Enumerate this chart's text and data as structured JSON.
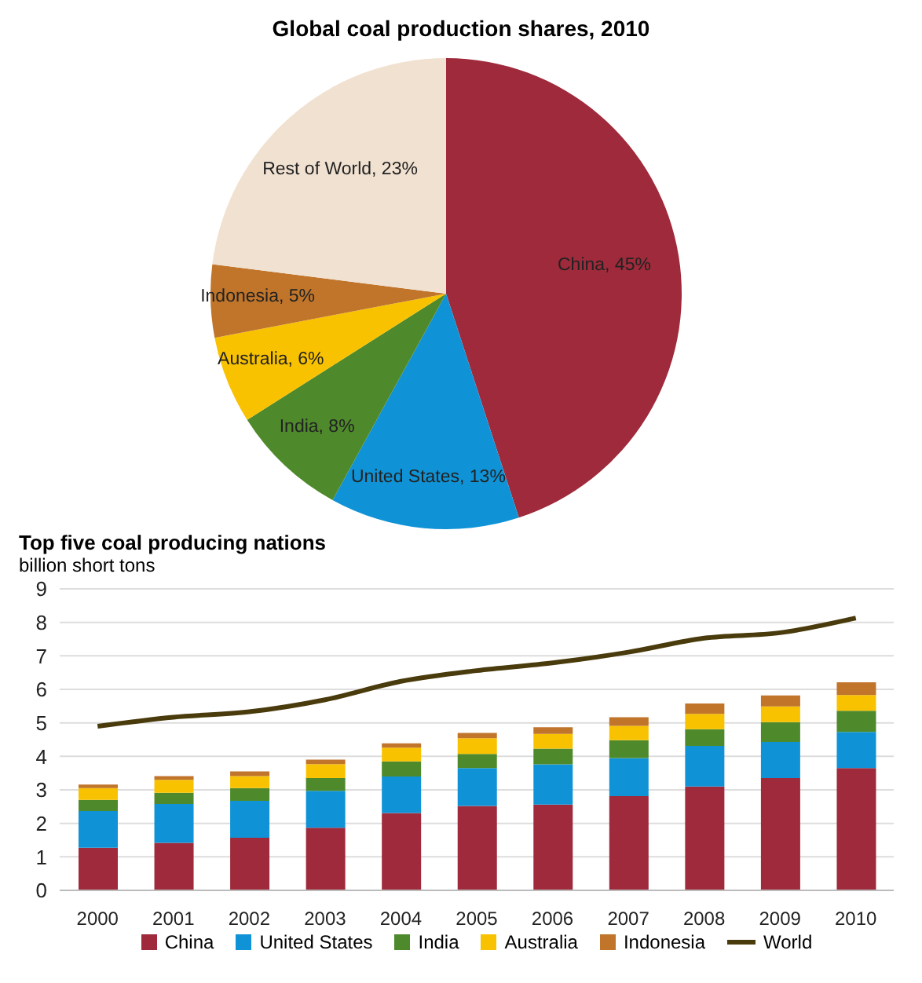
{
  "chart_data": [
    {
      "type": "pie",
      "title": "Global coal production shares, 2010",
      "categories": [
        "China",
        "United States",
        "India",
        "Australia",
        "Indonesia",
        "Rest of World"
      ],
      "values": [
        45,
        13,
        8,
        6,
        5,
        23
      ],
      "value_labels": [
        "45%",
        "13%",
        "8%",
        "6%",
        "5%",
        "23%"
      ],
      "colors": [
        "#9e2a3b",
        "#0f93d6",
        "#4e8a2b",
        "#f9c200",
        "#c0752a",
        "#f1e1d1"
      ]
    },
    {
      "type": "bar",
      "stacked": true,
      "title": "Top five coal producing nations",
      "ylabel": "billion short tons",
      "categories": [
        "2000",
        "2001",
        "2002",
        "2003",
        "2004",
        "2005",
        "2006",
        "2007",
        "2008",
        "2009",
        "2010"
      ],
      "series": [
        {
          "name": "China",
          "color": "#9e2a3b",
          "values": [
            1.27,
            1.42,
            1.57,
            1.87,
            2.31,
            2.52,
            2.56,
            2.81,
            3.1,
            3.35,
            3.65
          ]
        },
        {
          "name": "United States",
          "color": "#0f93d6",
          "values": [
            1.1,
            1.16,
            1.1,
            1.1,
            1.09,
            1.13,
            1.2,
            1.14,
            1.21,
            1.08,
            1.08
          ]
        },
        {
          "name": "India",
          "color": "#4e8a2b",
          "values": [
            0.33,
            0.33,
            0.38,
            0.38,
            0.45,
            0.42,
            0.47,
            0.53,
            0.5,
            0.59,
            0.63
          ]
        },
        {
          "name": "Australia",
          "color": "#f9c200",
          "values": [
            0.35,
            0.39,
            0.36,
            0.42,
            0.41,
            0.47,
            0.44,
            0.43,
            0.46,
            0.47,
            0.47
          ]
        },
        {
          "name": "Indonesia",
          "color": "#c0752a",
          "values": [
            0.11,
            0.11,
            0.14,
            0.13,
            0.13,
            0.16,
            0.2,
            0.26,
            0.31,
            0.33,
            0.38
          ]
        },
        {
          "name": "World",
          "type": "line",
          "color": "#4a3b0c",
          "values": [
            4.9,
            5.17,
            5.33,
            5.69,
            6.24,
            6.56,
            6.79,
            7.11,
            7.53,
            7.69,
            8.13
          ]
        }
      ],
      "ylim": [
        0,
        9
      ],
      "yticks": [
        0,
        1,
        2,
        3,
        4,
        5,
        6,
        7,
        8,
        9
      ],
      "grid": "y",
      "legend": "bottom",
      "marker": "none"
    }
  ]
}
